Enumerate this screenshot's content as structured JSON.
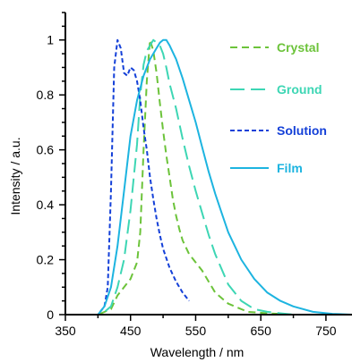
{
  "chart_data": {
    "type": "line",
    "title": "",
    "xlabel": "Wavelength / nm",
    "ylabel": "Intensity / a.u.",
    "xlim": [
      350,
      790
    ],
    "ylim": [
      0,
      1.1
    ],
    "xticks": [
      350,
      450,
      550,
      650,
      750
    ],
    "xtick_labels": [
      "350",
      "450",
      "550",
      "650",
      "750"
    ],
    "yticks": [
      0,
      0.2,
      0.4,
      0.6,
      0.8,
      1
    ],
    "ytick_labels": [
      "0",
      "0.2",
      "0.4",
      "0.6",
      "0.8",
      "1"
    ],
    "grid": false,
    "legend_position": "top-right",
    "series": [
      {
        "name": "Crystal",
        "color": "#6cc33a",
        "style": "dashed",
        "x": [
          350,
          400,
          420,
          430,
          440,
          450,
          460,
          465,
          470,
          475,
          480,
          485,
          490,
          495,
          500,
          505,
          510,
          515,
          520,
          525,
          530,
          540,
          550,
          560,
          570,
          580,
          600,
          630,
          660,
          700,
          790
        ],
        "y": [
          0,
          0,
          0.02,
          0.07,
          0.1,
          0.13,
          0.19,
          0.3,
          0.6,
          0.85,
          1.0,
          0.96,
          0.88,
          0.77,
          0.67,
          0.58,
          0.5,
          0.42,
          0.36,
          0.31,
          0.27,
          0.22,
          0.19,
          0.16,
          0.12,
          0.08,
          0.04,
          0.01,
          0.005,
          0,
          0
        ]
      },
      {
        "name": "Ground",
        "color": "#3dd6b4",
        "style": "long-dashed",
        "x": [
          350,
          405,
          420,
          430,
          440,
          450,
          460,
          465,
          470,
          475,
          480,
          485,
          490,
          495,
          500,
          505,
          510,
          520,
          530,
          540,
          550,
          560,
          570,
          580,
          600,
          620,
          640,
          660,
          680,
          700,
          790
        ],
        "y": [
          0,
          0,
          0.03,
          0.1,
          0.2,
          0.38,
          0.62,
          0.8,
          0.91,
          0.96,
          0.98,
          1.0,
          0.99,
          0.98,
          0.95,
          0.9,
          0.84,
          0.75,
          0.64,
          0.54,
          0.45,
          0.37,
          0.29,
          0.22,
          0.11,
          0.05,
          0.02,
          0.01,
          0.005,
          0,
          0
        ]
      },
      {
        "name": "Solution",
        "color": "#1440d8",
        "style": "short-dashed",
        "x": [
          350,
          400,
          410,
          415,
          420,
          425,
          430,
          435,
          440,
          445,
          450,
          455,
          460,
          465,
          470,
          475,
          480,
          485,
          490,
          495,
          500,
          510,
          520,
          530,
          540
        ],
        "y": [
          0,
          0,
          0.03,
          0.1,
          0.45,
          0.9,
          1.0,
          0.97,
          0.88,
          0.87,
          0.9,
          0.89,
          0.85,
          0.78,
          0.68,
          0.6,
          0.5,
          0.42,
          0.35,
          0.29,
          0.24,
          0.17,
          0.12,
          0.08,
          0.05
        ]
      },
      {
        "name": "Film",
        "color": "#1db4e0",
        "style": "solid",
        "x": [
          350,
          400,
          410,
          420,
          430,
          440,
          450,
          460,
          470,
          480,
          490,
          495,
          500,
          505,
          510,
          520,
          530,
          540,
          550,
          560,
          570,
          580,
          590,
          600,
          620,
          640,
          660,
          680,
          700,
          730,
          760,
          790
        ],
        "y": [
          0,
          0,
          0.03,
          0.1,
          0.25,
          0.45,
          0.65,
          0.78,
          0.87,
          0.93,
          0.97,
          0.99,
          1.0,
          1.0,
          0.98,
          0.93,
          0.86,
          0.78,
          0.7,
          0.61,
          0.52,
          0.44,
          0.37,
          0.3,
          0.2,
          0.13,
          0.08,
          0.05,
          0.03,
          0.01,
          0.003,
          0
        ]
      }
    ]
  }
}
